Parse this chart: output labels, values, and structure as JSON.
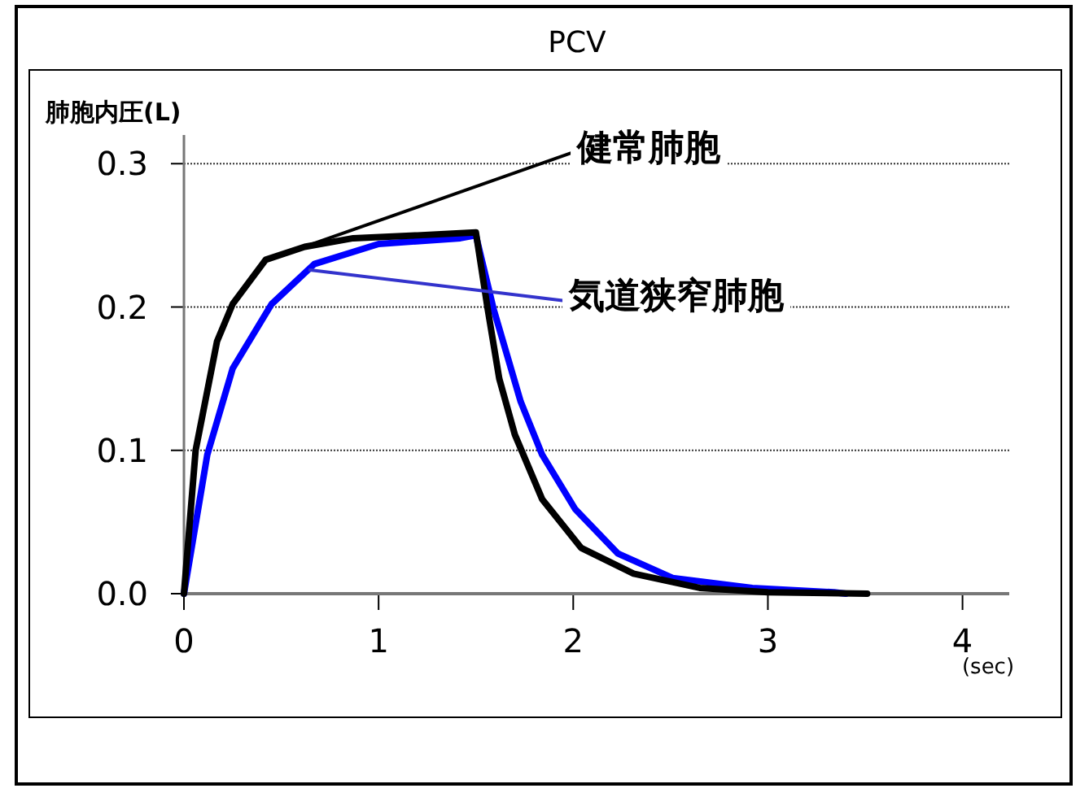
{
  "chart_data": {
    "type": "line",
    "title": "PCV",
    "ylabel": "肺胞内圧(L)",
    "xlabel": "(sec)",
    "xlim": [
      0,
      4.24
    ],
    "ylim": [
      0,
      0.32
    ],
    "xticks": [
      0,
      1,
      2,
      3,
      4
    ],
    "yticks": [
      {
        "value": 0,
        "label": "0.0"
      },
      {
        "value": 0.1,
        "label": "0.1"
      },
      {
        "value": 0.2,
        "label": "0.2"
      },
      {
        "value": 0.3,
        "label": "0.3"
      }
    ],
    "grid": "y",
    "marker": "none",
    "line_style": "solid",
    "series": [
      {
        "color": "#0000ff",
        "x": [
          0,
          0.12,
          0.25,
          0.45,
          0.67,
          1.0,
          1.42,
          1.5,
          1.59,
          1.73,
          1.84,
          2.01,
          2.23,
          2.51,
          2.92,
          3.34,
          3.4
        ],
        "values": [
          0,
          0.097,
          0.157,
          0.202,
          0.23,
          0.244,
          0.248,
          0.25,
          0.199,
          0.134,
          0.097,
          0.059,
          0.028,
          0.011,
          0.004,
          0.001,
          0
        ]
      },
      {
        "color": "#000000",
        "x": [
          0,
          0.06,
          0.17,
          0.25,
          0.42,
          0.62,
          0.87,
          1.2,
          1.5,
          1.56,
          1.62,
          1.7,
          1.84,
          2.04,
          2.31,
          2.65,
          3.0,
          3.51
        ],
        "values": [
          0,
          0.1,
          0.176,
          0.202,
          0.233,
          0.242,
          0.248,
          0.25,
          0.252,
          0.199,
          0.15,
          0.111,
          0.066,
          0.032,
          0.014,
          0.004,
          0.001,
          0
        ]
      }
    ],
    "annotations": [
      {
        "text": "健常肺胞",
        "x": 0.64,
        "y": 0.243
      },
      {
        "text": "気道狭窄肺胞",
        "x": 0.64,
        "y": 0.226
      }
    ]
  }
}
